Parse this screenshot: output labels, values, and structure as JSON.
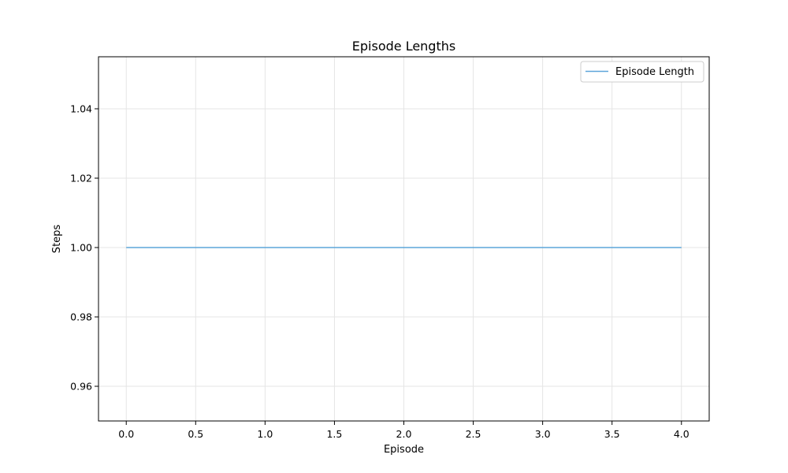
{
  "chart_data": {
    "type": "line",
    "title": "Episode Lengths",
    "xlabel": "Episode",
    "ylabel": "Steps",
    "x": [
      0,
      1,
      2,
      3,
      4
    ],
    "series": [
      {
        "name": "Episode Length",
        "values": [
          1,
          1,
          1,
          1,
          1
        ],
        "color": "#5da5da"
      }
    ],
    "xlim": [
      -0.2,
      4.2
    ],
    "ylim": [
      0.95,
      1.055
    ],
    "xticks": [
      0.0,
      0.5,
      1.0,
      1.5,
      2.0,
      2.5,
      3.0,
      3.5,
      4.0
    ],
    "xtick_labels": [
      "0.0",
      "0.5",
      "1.0",
      "1.5",
      "2.0",
      "2.5",
      "3.0",
      "3.5",
      "4.0"
    ],
    "yticks": [
      0.96,
      0.98,
      1.0,
      1.02,
      1.04
    ],
    "ytick_labels": [
      "0.96",
      "0.98",
      "1.00",
      "1.02",
      "1.04"
    ],
    "grid": true,
    "legend_position": "top-right"
  }
}
